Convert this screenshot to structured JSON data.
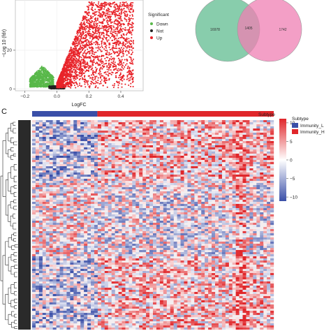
{
  "chart_data": [
    {
      "type": "scatter",
      "title": "",
      "xlabel": "LogFC",
      "ylabel": "−Log 10 (fdr)",
      "xlim": [
        -0.26,
        0.54
      ],
      "ylim": [
        -1,
        46
      ],
      "x_ticks": [
        -0.2,
        0.0,
        0.2,
        0.4
      ],
      "x_tick_labels": [
        "−0.2",
        "0.0",
        "0.2",
        "0.4"
      ],
      "y_ticks": [
        0,
        20
      ],
      "y_tick_labels": [
        "0",
        "20"
      ],
      "grid": true,
      "legend": {
        "title": "Significant",
        "placement": "right",
        "entries": [
          "Down",
          "Not",
          "Up"
        ]
      },
      "series": [
        {
          "name": "Down",
          "color": "#59b84a",
          "x_range": [
            -0.17,
            -0.02
          ],
          "y_range": [
            1,
            12
          ],
          "approx_count": 900
        },
        {
          "name": "Not",
          "color": "#222222",
          "x_range": [
            -0.05,
            0.05
          ],
          "y_range": [
            0,
            1.5
          ],
          "approx_count": 300
        },
        {
          "name": "Up",
          "color": "#e8242a",
          "x_range": [
            0.0,
            0.48
          ],
          "y_range": [
            0.5,
            45
          ],
          "approx_count": 2600
        }
      ]
    },
    {
      "type": "venn",
      "sets": [
        {
          "color": "#73c49e",
          "only_value": "16978"
        },
        {
          "color": "#ef7fb3",
          "only_value": "1742"
        }
      ],
      "intersection_value": "1405"
    },
    {
      "type": "heatmap",
      "panel_label": "C",
      "annotation_title": "Subtype",
      "colorbar": {
        "ticks": [
          10,
          5,
          0,
          -5,
          -10
        ],
        "tick_labels": [
          "10",
          "5",
          "0",
          "−5",
          "−10"
        ],
        "colors": {
          "high": "#e0262a",
          "mid": "#ffffff",
          "low": "#3a4fa8"
        }
      },
      "column_groups": [
        {
          "name": "Immunity_L",
          "color": "#3a4fa8",
          "fraction": 0.27
        },
        {
          "name": "Immunity_H",
          "color": "#e0262a",
          "fraction": 0.73
        }
      ],
      "legend_title": "Subtype",
      "legend_entries": [
        "Immunity_L",
        "Immunity_H"
      ]
    }
  ]
}
